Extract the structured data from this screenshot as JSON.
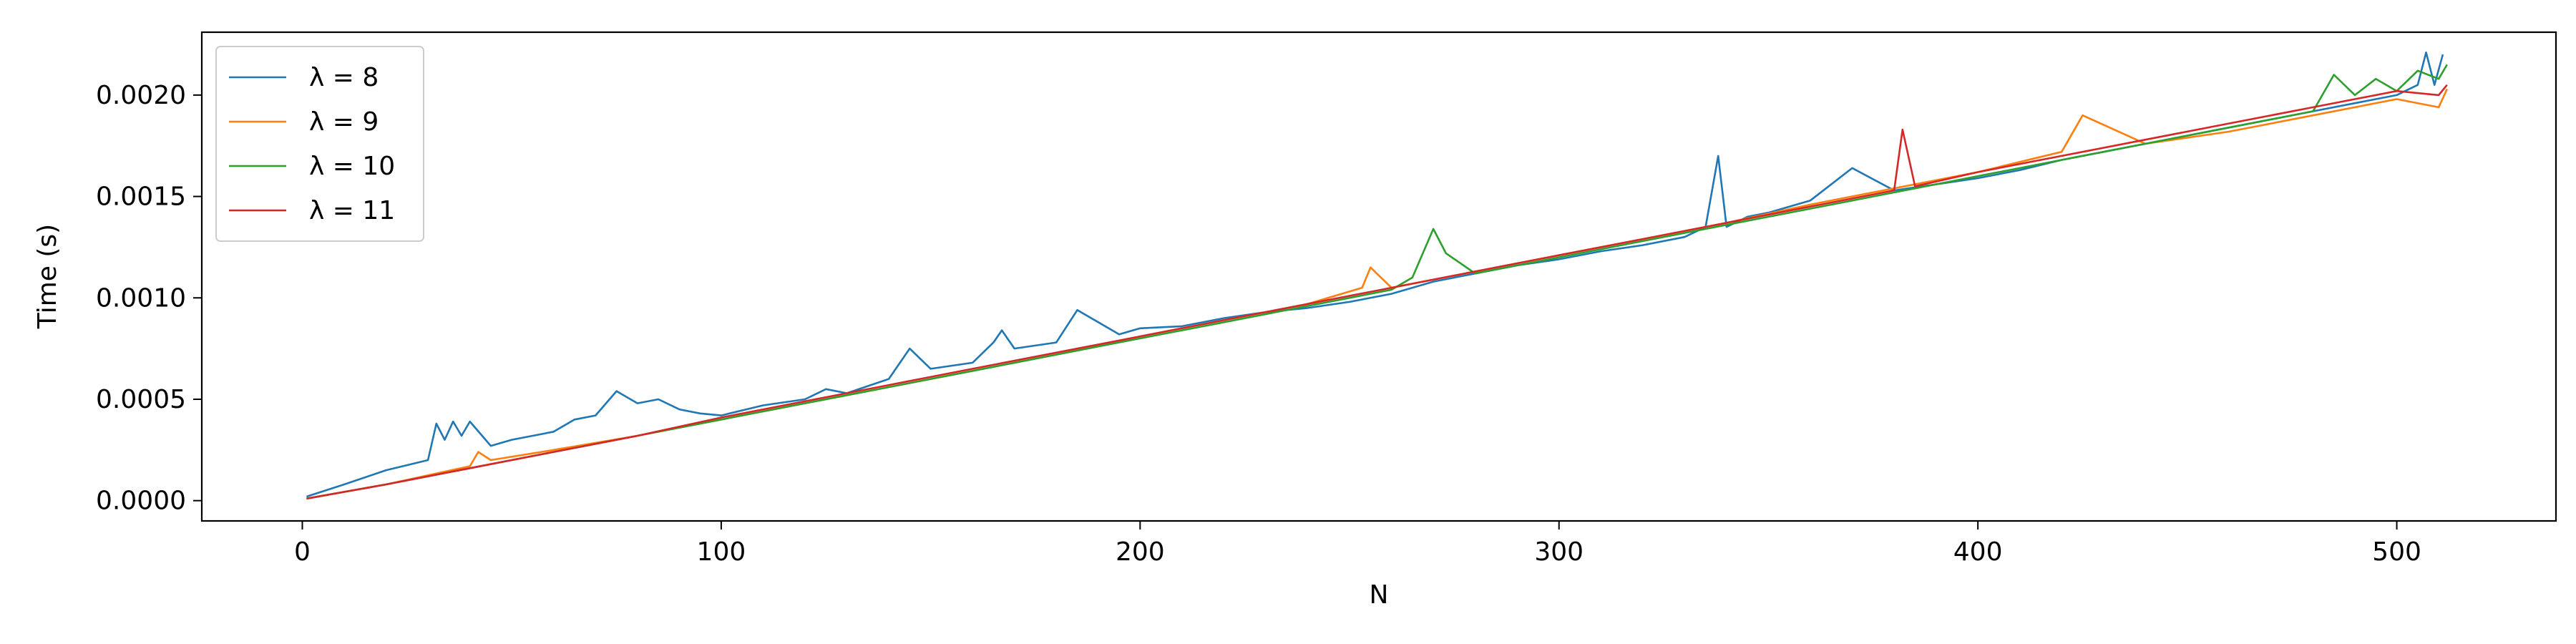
{
  "chart_data": {
    "type": "line",
    "title": "",
    "xlabel": "N",
    "ylabel": "Time (s)",
    "xlim": [
      -24,
      538
    ],
    "ylim": [
      -0.0001,
      0.00231
    ],
    "xticks": [
      0,
      100,
      200,
      300,
      400,
      500
    ],
    "xtick_labels": [
      "0",
      "100",
      "200",
      "300",
      "400",
      "500"
    ],
    "yticks": [
      0.0,
      0.0005,
      0.001,
      0.0015,
      0.002
    ],
    "ytick_labels": [
      "0.0000",
      "0.0005",
      "0.0010",
      "0.0015",
      "0.0020"
    ],
    "grid": false,
    "legend_position": "top-left",
    "series": [
      {
        "name": "λ = 8",
        "color": "#1f77b4",
        "x": [
          1,
          10,
          20,
          30,
          32,
          34,
          36,
          38,
          40,
          45,
          50,
          55,
          60,
          65,
          70,
          75,
          80,
          85,
          90,
          95,
          100,
          110,
          120,
          125,
          130,
          140,
          145,
          150,
          160,
          165,
          167,
          170,
          180,
          185,
          190,
          195,
          200,
          210,
          220,
          230,
          240,
          250,
          260,
          270,
          280,
          290,
          300,
          310,
          320,
          330,
          335,
          338,
          340,
          345,
          350,
          355,
          360,
          370,
          380,
          390,
          400,
          410,
          420,
          430,
          440,
          450,
          460,
          470,
          480,
          490,
          500,
          505,
          507,
          509,
          511
        ],
        "y": [
          2e-05,
          8e-05,
          0.00015,
          0.0002,
          0.00038,
          0.0003,
          0.00039,
          0.00032,
          0.00039,
          0.00027,
          0.0003,
          0.00032,
          0.00034,
          0.0004,
          0.00042,
          0.00054,
          0.00048,
          0.0005,
          0.00045,
          0.00043,
          0.00042,
          0.00047,
          0.0005,
          0.00055,
          0.00053,
          0.0006,
          0.00075,
          0.00065,
          0.00068,
          0.00078,
          0.00084,
          0.00075,
          0.00078,
          0.00094,
          0.00088,
          0.00082,
          0.00085,
          0.00086,
          0.0009,
          0.00093,
          0.00095,
          0.00098,
          0.00102,
          0.00108,
          0.00112,
          0.00116,
          0.00119,
          0.00123,
          0.00126,
          0.0013,
          0.00135,
          0.0017,
          0.00135,
          0.0014,
          0.00142,
          0.00145,
          0.00148,
          0.00164,
          0.00153,
          0.00156,
          0.00159,
          0.00163,
          0.00168,
          0.00172,
          0.00176,
          0.0018,
          0.00184,
          0.00188,
          0.00192,
          0.00196,
          0.002,
          0.00205,
          0.00221,
          0.00205,
          0.0022
        ]
      },
      {
        "name": "λ = 9",
        "color": "#ff7f0e",
        "x": [
          1,
          20,
          40,
          42,
          45,
          60,
          80,
          100,
          120,
          140,
          160,
          180,
          200,
          220,
          240,
          253,
          255,
          260,
          280,
          300,
          320,
          340,
          360,
          380,
          400,
          420,
          425,
          440,
          460,
          480,
          500,
          510,
          512
        ],
        "y": [
          1e-05,
          8e-05,
          0.00017,
          0.00024,
          0.0002,
          0.00025,
          0.00032,
          0.0004,
          0.00048,
          0.00056,
          0.00064,
          0.00072,
          0.00081,
          0.00089,
          0.00097,
          0.00105,
          0.00115,
          0.00105,
          0.00113,
          0.00121,
          0.00129,
          0.00137,
          0.00146,
          0.00154,
          0.00162,
          0.00172,
          0.0019,
          0.00176,
          0.00182,
          0.0019,
          0.00198,
          0.00194,
          0.00203
        ]
      },
      {
        "name": "λ = 10",
        "color": "#2ca02c",
        "x": [
          1,
          20,
          40,
          60,
          80,
          100,
          120,
          140,
          160,
          180,
          200,
          220,
          240,
          260,
          265,
          270,
          273,
          280,
          300,
          320,
          340,
          360,
          380,
          400,
          420,
          440,
          460,
          480,
          485,
          490,
          495,
          500,
          505,
          510,
          512
        ],
        "y": [
          1e-05,
          8e-05,
          0.00016,
          0.00024,
          0.00032,
          0.0004,
          0.00048,
          0.00056,
          0.00064,
          0.00072,
          0.0008,
          0.00088,
          0.00096,
          0.00104,
          0.0011,
          0.00134,
          0.00122,
          0.00112,
          0.0012,
          0.00128,
          0.00136,
          0.00144,
          0.00152,
          0.0016,
          0.00168,
          0.00176,
          0.00184,
          0.00192,
          0.0021,
          0.002,
          0.00208,
          0.00202,
          0.00212,
          0.00208,
          0.00215
        ]
      },
      {
        "name": "λ = 11",
        "color": "#d62728",
        "x": [
          1,
          20,
          40,
          60,
          80,
          100,
          120,
          140,
          160,
          180,
          200,
          220,
          240,
          260,
          280,
          300,
          320,
          340,
          360,
          380,
          382,
          385,
          400,
          420,
          440,
          460,
          480,
          500,
          510,
          512
        ],
        "y": [
          1e-05,
          8e-05,
          0.00016,
          0.00024,
          0.00032,
          0.00041,
          0.00049,
          0.00057,
          0.00065,
          0.00073,
          0.00081,
          0.00089,
          0.00097,
          0.00105,
          0.00113,
          0.00121,
          0.00129,
          0.00137,
          0.00145,
          0.00153,
          0.00183,
          0.00155,
          0.00162,
          0.0017,
          0.00178,
          0.00186,
          0.00194,
          0.00202,
          0.002,
          0.00205
        ]
      }
    ]
  }
}
